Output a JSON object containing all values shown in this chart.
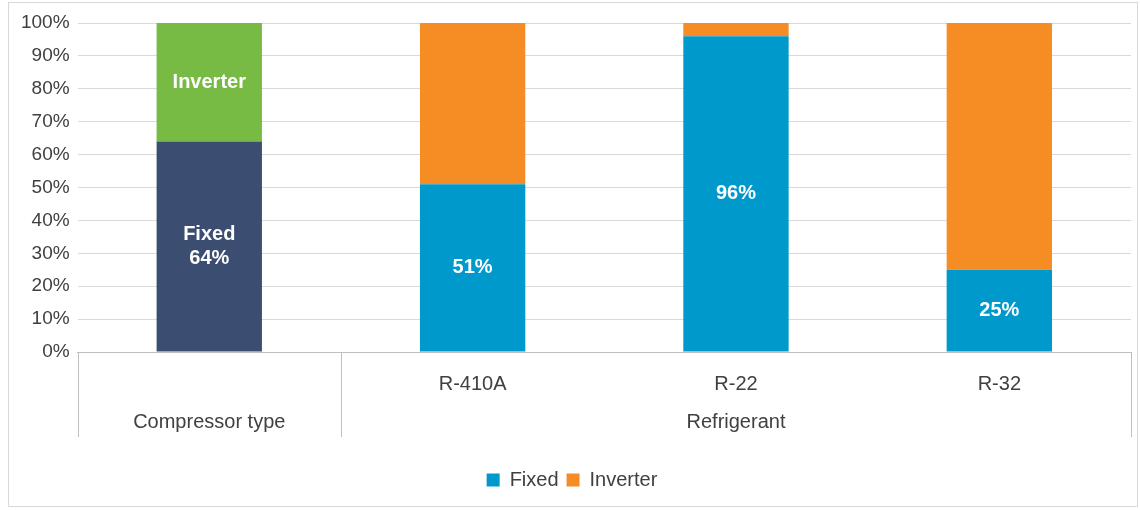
{
  "chart_data": {
    "type": "bar",
    "stacked": true,
    "categories": [
      null,
      "R-410A",
      "R-22",
      "R-32"
    ],
    "series": [
      {
        "name": "Fixed",
        "color": "#0099cc",
        "colors": [
          "#3b4e72",
          "#0099cc",
          "#0099cc",
          "#0099cc"
        ],
        "values": [
          64,
          51,
          96,
          25
        ],
        "value_labels": [
          "Fixed\n64%",
          "51%",
          "96%",
          "25%"
        ]
      },
      {
        "name": "Inverter",
        "color": "#f68d24",
        "colors": [
          "#77bb44",
          "#f68d24",
          "#f68d24",
          "#f68d24"
        ],
        "values": [
          36,
          49,
          4,
          75
        ],
        "value_labels": [
          "Inverter",
          null,
          null,
          null
        ]
      }
    ],
    "ylim": [
      0,
      100
    ],
    "yticks": [
      {
        "value": 0,
        "label": "0%"
      },
      {
        "value": 10,
        "label": "10%"
      },
      {
        "value": 20,
        "label": "20%"
      },
      {
        "value": 30,
        "label": "30%"
      },
      {
        "value": 40,
        "label": "40%"
      },
      {
        "value": 50,
        "label": "50%"
      },
      {
        "value": 60,
        "label": "60%"
      },
      {
        "value": 70,
        "label": "70%"
      },
      {
        "value": 80,
        "label": "80%"
      },
      {
        "value": 90,
        "label": "90%"
      },
      {
        "value": 100,
        "label": "100%"
      }
    ],
    "annotations": [
      "Compressor type",
      "Refrigerant"
    ],
    "grid": "y",
    "legend": "bottom"
  }
}
